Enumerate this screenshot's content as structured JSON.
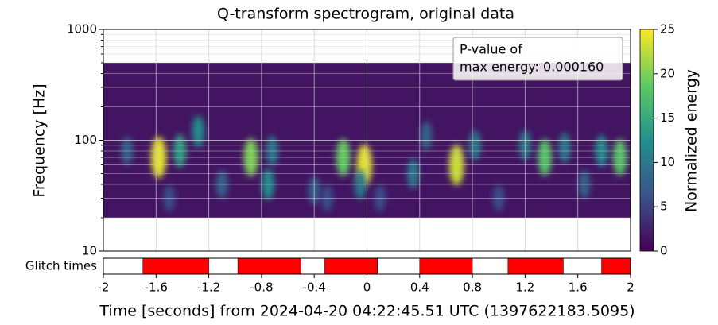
{
  "chart_data": {
    "type": "spectrogram",
    "title": "Q-transform spectrogram, original data",
    "x_label": "Time [seconds] from 2024-04-20 04:22:45.51 UTC (1397622183.5095)",
    "y_label": "Frequency [Hz]",
    "xlim": [
      -2,
      2
    ],
    "xticks": [
      -2,
      -1.6,
      -1.2,
      -0.8,
      -0.4,
      0,
      0.4,
      0.8,
      1.2,
      1.6,
      2
    ],
    "ylim": [
      10,
      1000
    ],
    "yscale": "log",
    "yticks": [
      10,
      100,
      1000
    ],
    "yminorticks": [
      20,
      30,
      40,
      50,
      60,
      70,
      80,
      90,
      200,
      300,
      400,
      500,
      600,
      700,
      800,
      900
    ],
    "grid": true,
    "spectrogram": {
      "flim": [
        20,
        500
      ],
      "background_energy": 1.5
    },
    "hotspots": {
      "t": [
        -1.58,
        -1.42,
        -1.28,
        -1.82,
        -1.1,
        -0.88,
        -0.72,
        -0.75,
        -0.4,
        -0.18,
        -0.02,
        -0.05,
        0.35,
        0.68,
        0.82,
        0.45,
        1.2,
        1.35,
        1.5,
        1.65,
        1.78,
        1.92,
        -1.5,
        -0.3,
        0.1,
        1.0
      ],
      "f": [
        70,
        80,
        120,
        80,
        40,
        70,
        80,
        40,
        35,
        70,
        60,
        40,
        50,
        60,
        90,
        110,
        90,
        70,
        85,
        40,
        80,
        70,
        30,
        30,
        30,
        30
      ],
      "energy": [
        24,
        14,
        12,
        8,
        8,
        20,
        10,
        12,
        8,
        19,
        24,
        10,
        10,
        23,
        10,
        8,
        10,
        18,
        10,
        8,
        12,
        18,
        6,
        6,
        6,
        6
      ]
    },
    "colorbar": {
      "label": "Normalized energy",
      "lim": [
        0,
        25
      ],
      "ticks": [
        0,
        5,
        10,
        15,
        20,
        25
      ],
      "colormap": [
        "#440154",
        "#3b528b",
        "#21918c",
        "#5ec962",
        "#fde725"
      ]
    },
    "annotation": [
      "P-value of",
      "max energy: 0.000160"
    ],
    "glitch_times": {
      "label": "Glitch times",
      "color": "#ff0000",
      "starts": [
        -1.7,
        -0.98,
        -0.32,
        0.4,
        1.07,
        1.78
      ],
      "ends": [
        -1.2,
        -0.5,
        0.08,
        0.8,
        1.49,
        2.0
      ]
    }
  }
}
